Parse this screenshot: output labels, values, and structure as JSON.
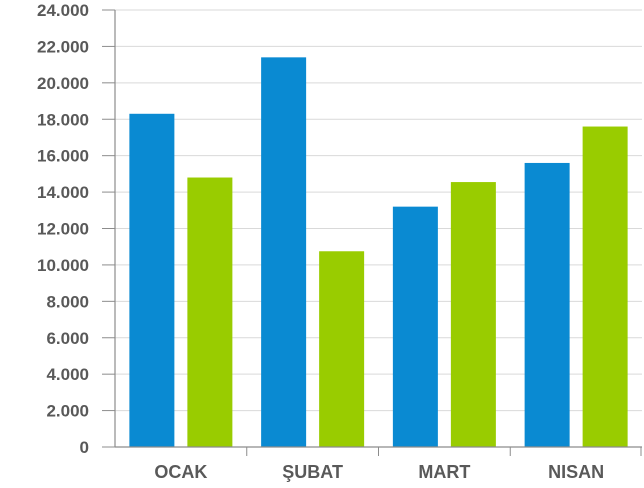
{
  "chart_data": {
    "type": "bar",
    "categories": [
      "OCAK",
      "ŞUBAT",
      "MART",
      "NISAN"
    ],
    "series": [
      {
        "values": [
          18300,
          21400,
          13200,
          15600
        ],
        "color": "#0A8AD2"
      },
      {
        "values": [
          14800,
          10750,
          14550,
          17600
        ],
        "color": "#99CC00"
      }
    ],
    "ylim": [
      0,
      24000
    ],
    "yticks": [
      0,
      2000,
      4000,
      6000,
      8000,
      10000,
      12000,
      14000,
      16000,
      18000,
      20000,
      22000,
      24000
    ],
    "ytick_labels": [
      "0",
      "2.000",
      "4.000",
      "6.000",
      "8.000",
      "10.000",
      "12.000",
      "14.000",
      "16.000",
      "18.000",
      "20.000",
      "22.000",
      "24.000"
    ],
    "grid": true,
    "legend": "none"
  }
}
